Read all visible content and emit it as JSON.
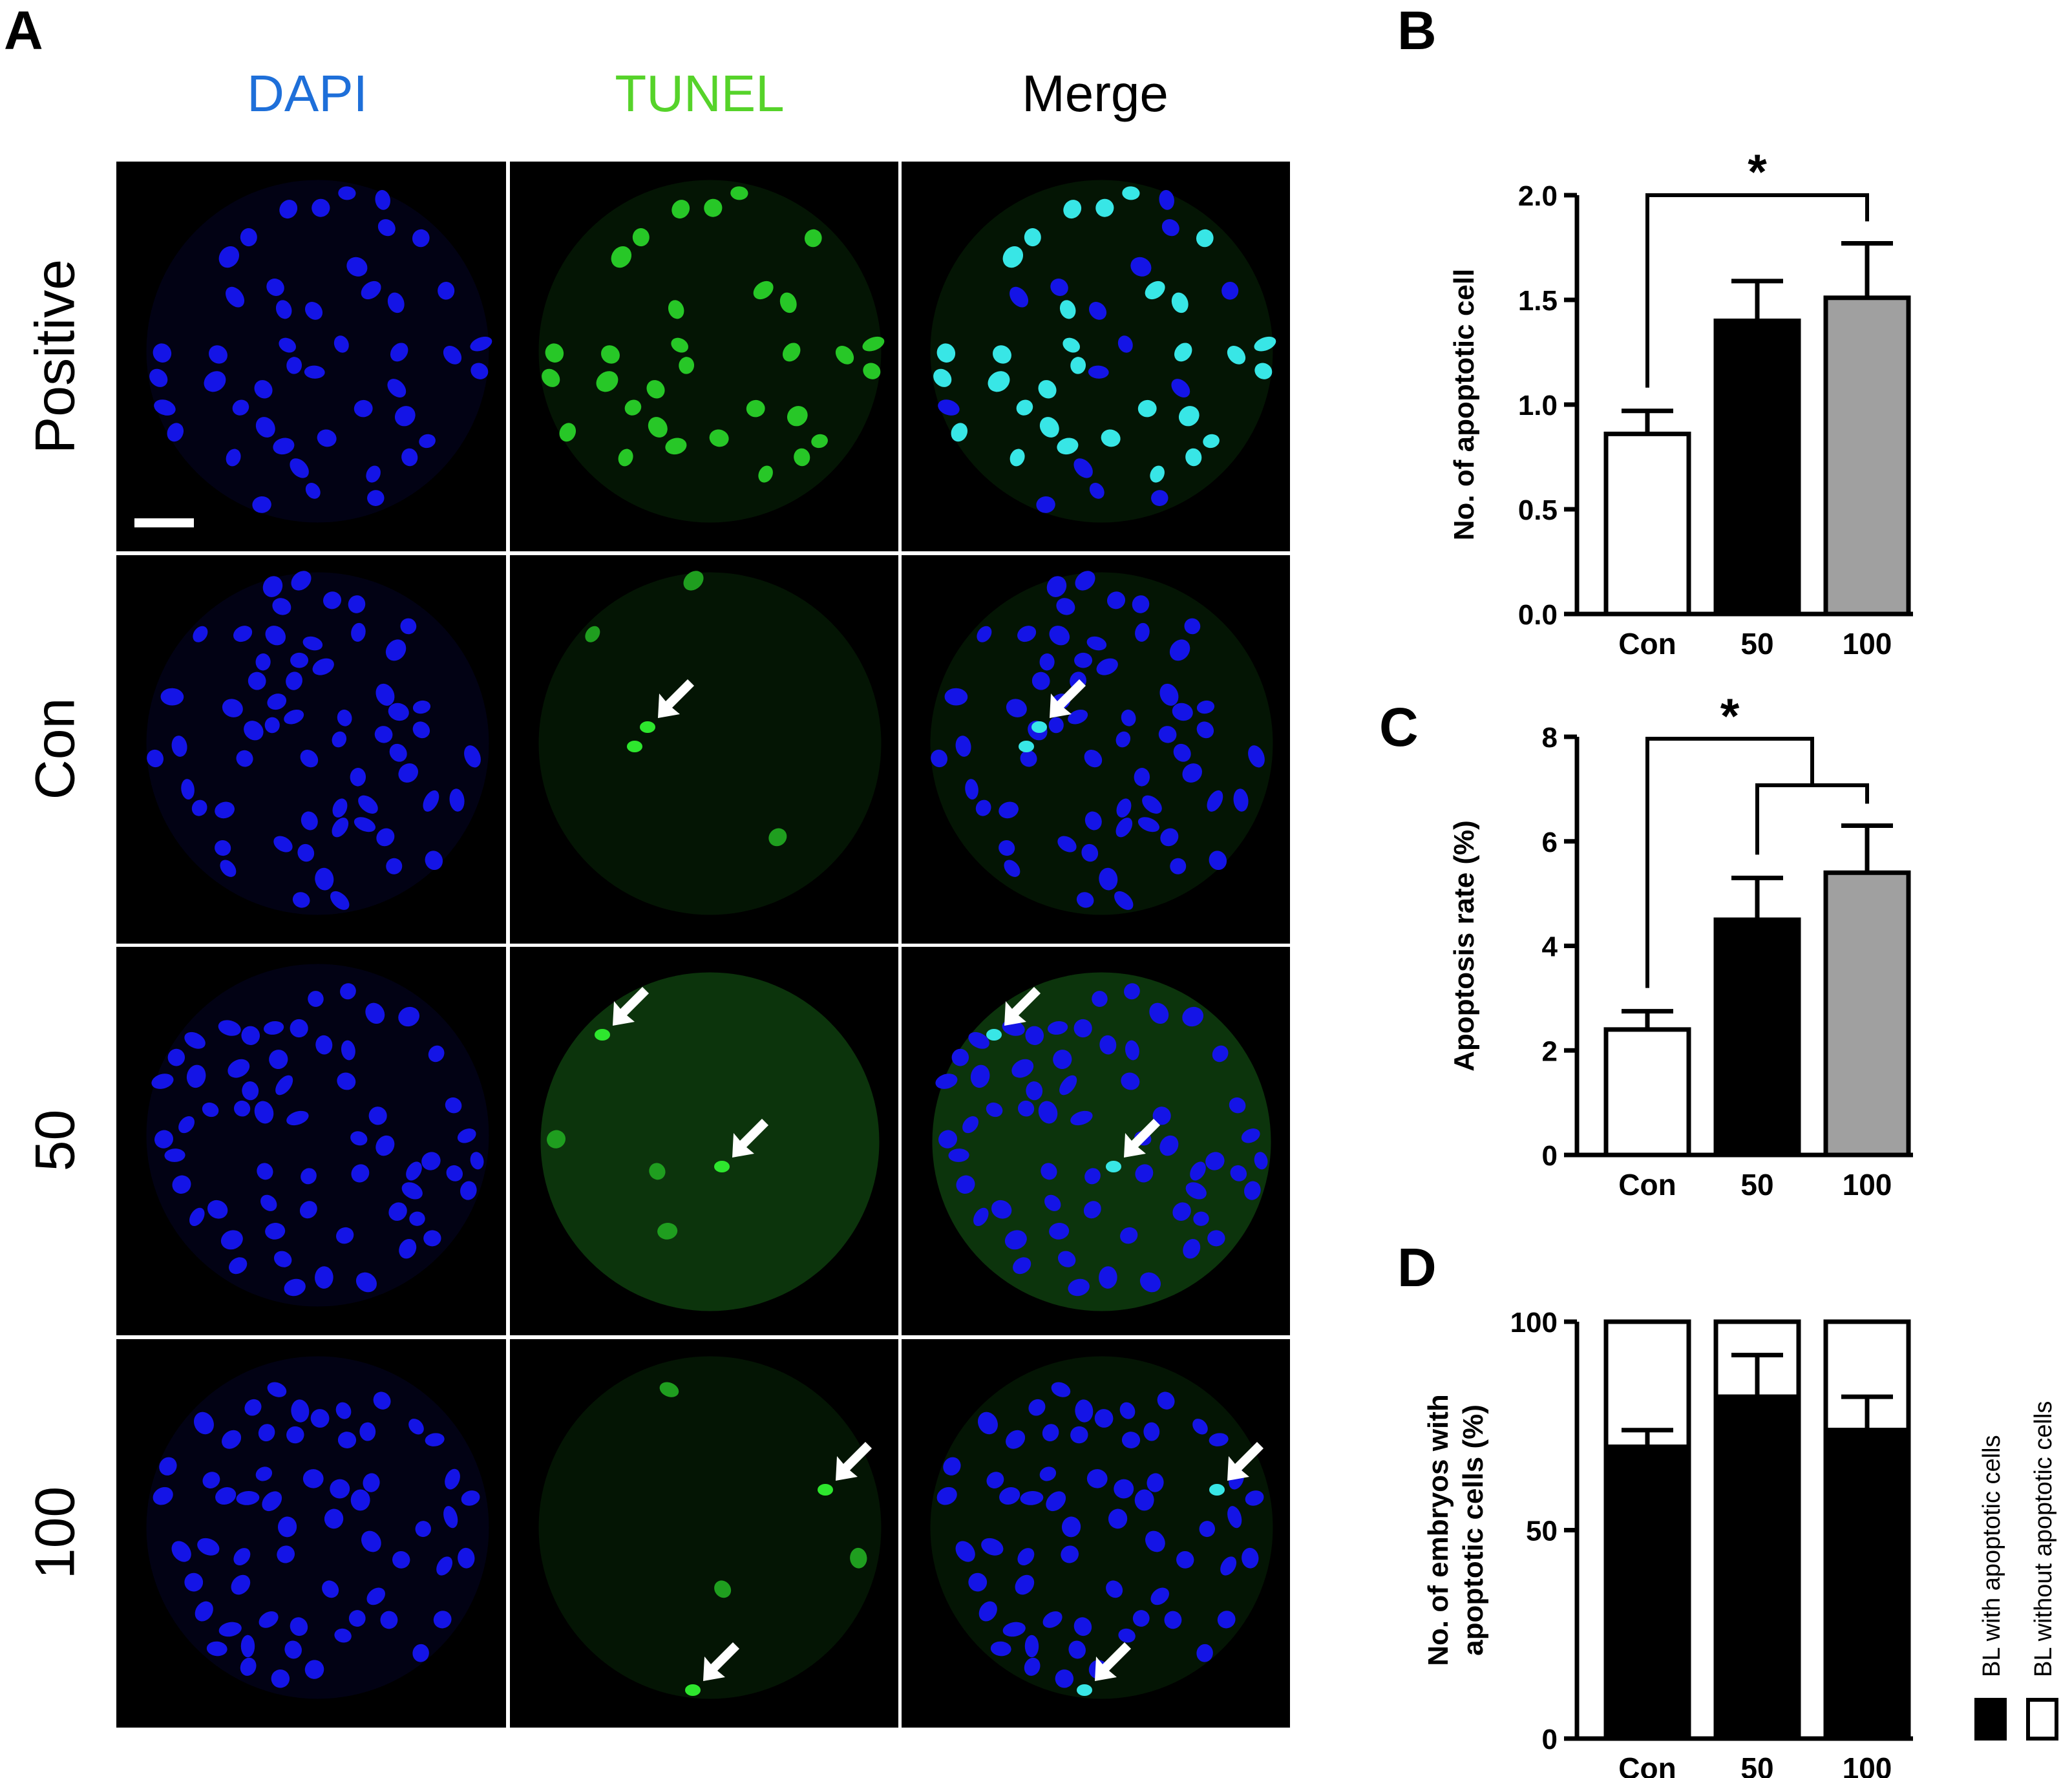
{
  "figure": {
    "panels": {
      "A": "A",
      "B": "B",
      "C": "C",
      "D": "D"
    },
    "microscopy": {
      "columns": [
        {
          "label": "DAPI",
          "color": "#1e6fd9"
        },
        {
          "label": "TUNEL",
          "color": "#56d32a"
        },
        {
          "label": "Merge",
          "color": "#000000"
        }
      ],
      "rows": [
        "Positive",
        "Con",
        "50",
        "100"
      ],
      "colors": {
        "dapi": "#1414e6",
        "tunel": "#2ee62e",
        "merge_overlap": "#38e6e6",
        "background": "#000000",
        "divider": "#ffffff"
      },
      "icons": [
        "arrow-icon",
        "scale-bar"
      ]
    }
  },
  "chart_data": [
    {
      "panel": "B",
      "type": "bar",
      "categories": [
        "Con",
        "50",
        "100"
      ],
      "values": [
        0.86,
        1.4,
        1.51
      ],
      "errors": [
        0.11,
        0.19,
        0.26
      ],
      "bar_colors": [
        "#ffffff",
        "#000000",
        "#a0a0a0"
      ],
      "ylabel": "No. of apoptotic cell",
      "ylim": [
        0,
        2.0
      ],
      "yticks": [
        "0.0",
        "0.5",
        "1.0",
        "1.5",
        "2.0"
      ],
      "significance": [
        {
          "from": "Con",
          "to": "100",
          "label": "*"
        }
      ]
    },
    {
      "panel": "C",
      "type": "bar",
      "categories": [
        "Con",
        "50",
        "100"
      ],
      "values": [
        2.4,
        4.5,
        5.4
      ],
      "errors": [
        0.35,
        0.8,
        0.9
      ],
      "bar_colors": [
        "#ffffff",
        "#000000",
        "#a0a0a0"
      ],
      "ylabel": "Apoptosis rate (%)",
      "ylim": [
        0,
        8
      ],
      "yticks": [
        "0",
        "2",
        "4",
        "6",
        "8"
      ],
      "significance": [
        {
          "from": "Con",
          "to": [
            "50",
            "100"
          ],
          "label": "*"
        }
      ]
    },
    {
      "panel": "D",
      "type": "bar",
      "stacked": true,
      "categories": [
        "Con",
        "50",
        "100"
      ],
      "series": [
        {
          "name": "BL with apoptotic cells",
          "values": [
            70,
            82,
            74
          ],
          "errors": [
            4,
            10,
            8
          ],
          "color": "#000000"
        },
        {
          "name": "BL without apoptotic cells",
          "values": [
            30,
            18,
            26
          ],
          "color": "#ffffff"
        }
      ],
      "ylabel_lines": [
        "No. of  embryos with",
        "apoptotic cells (%)"
      ],
      "ylim": [
        0,
        100
      ],
      "yticks": [
        "0",
        "50",
        "100"
      ],
      "legend_position": "right"
    }
  ]
}
